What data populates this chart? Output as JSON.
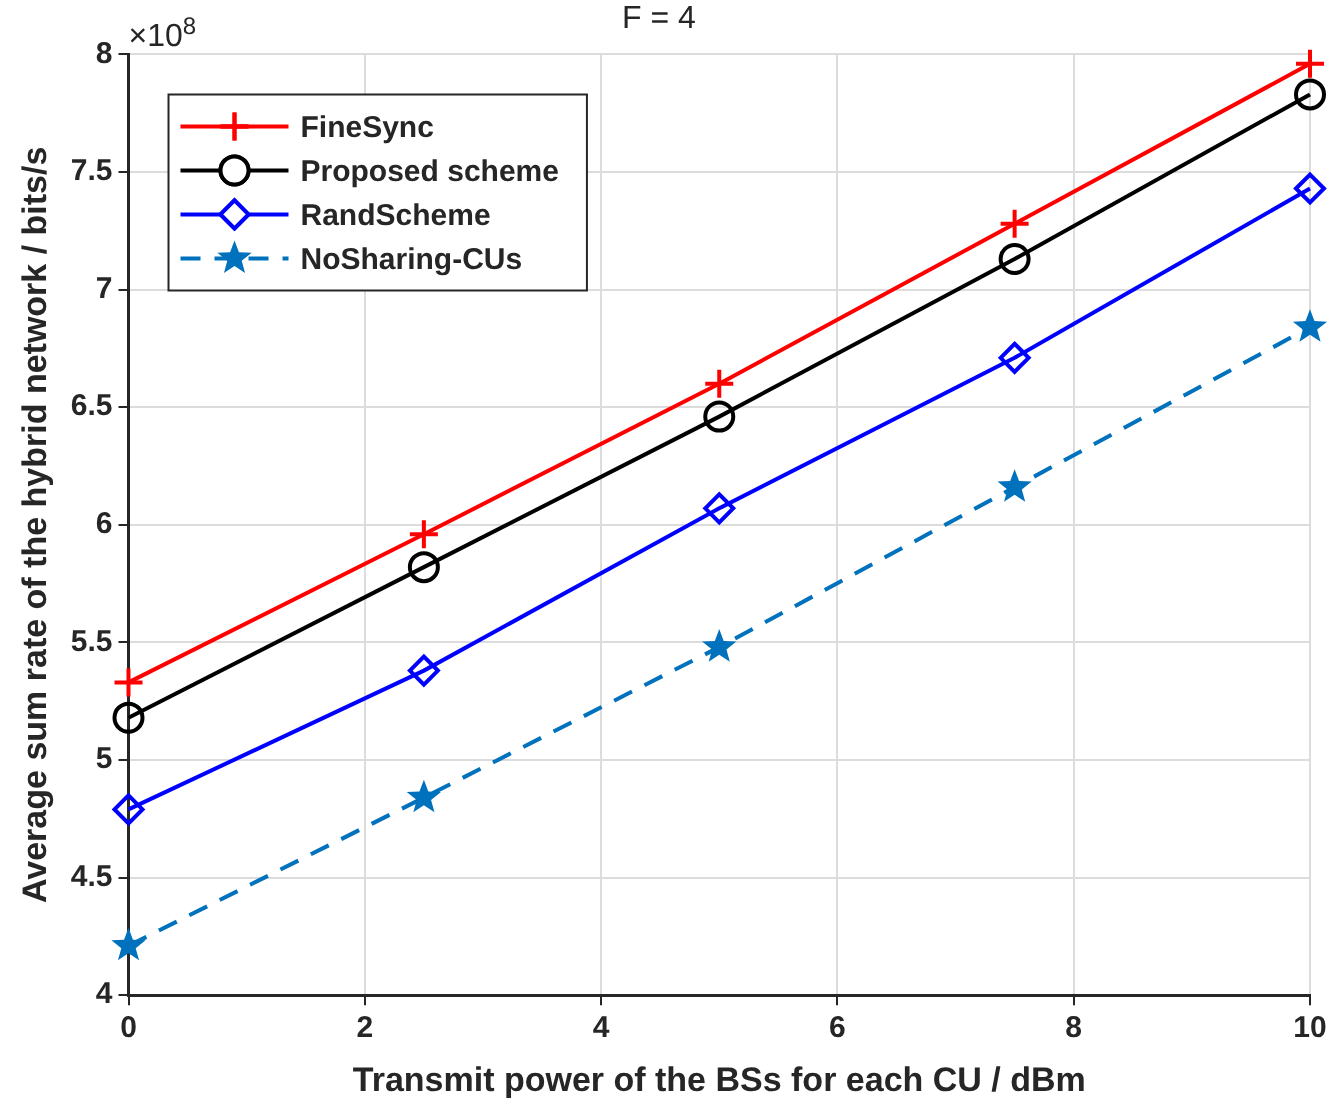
{
  "chart_data": {
    "type": "line",
    "title": "F = 4",
    "xlabel": "Transmit power of the BSs for each CU / dBm",
    "ylabel": "Average sum rate of the hybrid network / bits/s",
    "annotations": [
      "×10$^{8}$"
    ],
    "x": [
      0,
      2.5,
      5,
      7.5,
      10
    ],
    "series": [
      {
        "name": "FineSync",
        "color": "#ff0000",
        "marker": "cross",
        "line_style": "solid",
        "values": [
          5.33,
          5.96,
          6.6,
          7.28,
          7.96
        ]
      },
      {
        "name": "Proposed scheme",
        "color": "#000000",
        "marker": "circle",
        "line_style": "solid",
        "values": [
          5.18,
          5.82,
          6.46,
          7.13,
          7.83
        ]
      },
      {
        "name": "RandScheme",
        "color": "#0000ff",
        "marker": "diamond",
        "line_style": "solid",
        "values": [
          4.79,
          5.38,
          6.07,
          6.71,
          7.43
        ]
      },
      {
        "name": "NoSharing-CUs",
        "color": "#0072bd",
        "marker": "star",
        "line_style": "dashed",
        "values": [
          4.21,
          4.84,
          5.48,
          6.16,
          6.84
        ]
      }
    ],
    "xlim": [
      0,
      10
    ],
    "xticks": [
      0,
      2,
      4,
      6,
      8,
      10
    ],
    "ylim": [
      4,
      8
    ],
    "yticks": [
      4,
      4.5,
      5,
      5.5,
      6,
      6.5,
      7,
      7.5,
      8
    ],
    "grid": true,
    "legend": "top left"
  }
}
